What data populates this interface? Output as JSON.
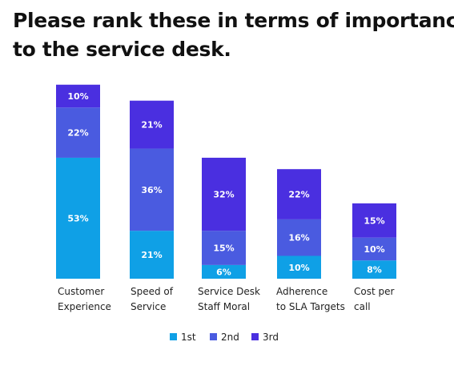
{
  "chart_data": {
    "type": "bar",
    "stacked": true,
    "title": [
      "Please rank these in terms of importance",
      "to  the service desk."
    ],
    "categories": [
      [
        "Customer",
        "Experience"
      ],
      [
        "Speed of",
        "Service"
      ],
      [
        "Service Desk",
        "Staff Moral"
      ],
      [
        "Adherence",
        "to SLA Targets"
      ],
      [
        "Cost per",
        "call"
      ]
    ],
    "series": [
      {
        "name": "1st",
        "color": "#0fa0e6",
        "values": [
          53,
          21,
          6,
          10,
          8
        ]
      },
      {
        "name": "2nd",
        "color": "#4a5be0",
        "values": [
          22,
          36,
          15,
          16,
          10
        ]
      },
      {
        "name": "3rd",
        "color": "#4a2fe0",
        "values": [
          10,
          21,
          32,
          22,
          15
        ]
      }
    ],
    "value_labels": [
      [
        "53%",
        "21%",
        "6%",
        "10%",
        "8%"
      ],
      [
        "22%",
        "36%",
        "15%",
        "16%",
        "10%"
      ],
      [
        "10%",
        "21%",
        "32%",
        "22%",
        "15%"
      ]
    ],
    "legend": [
      "1st",
      "2nd",
      "3rd"
    ],
    "legend_position": "bottom-center",
    "grid": false
  }
}
